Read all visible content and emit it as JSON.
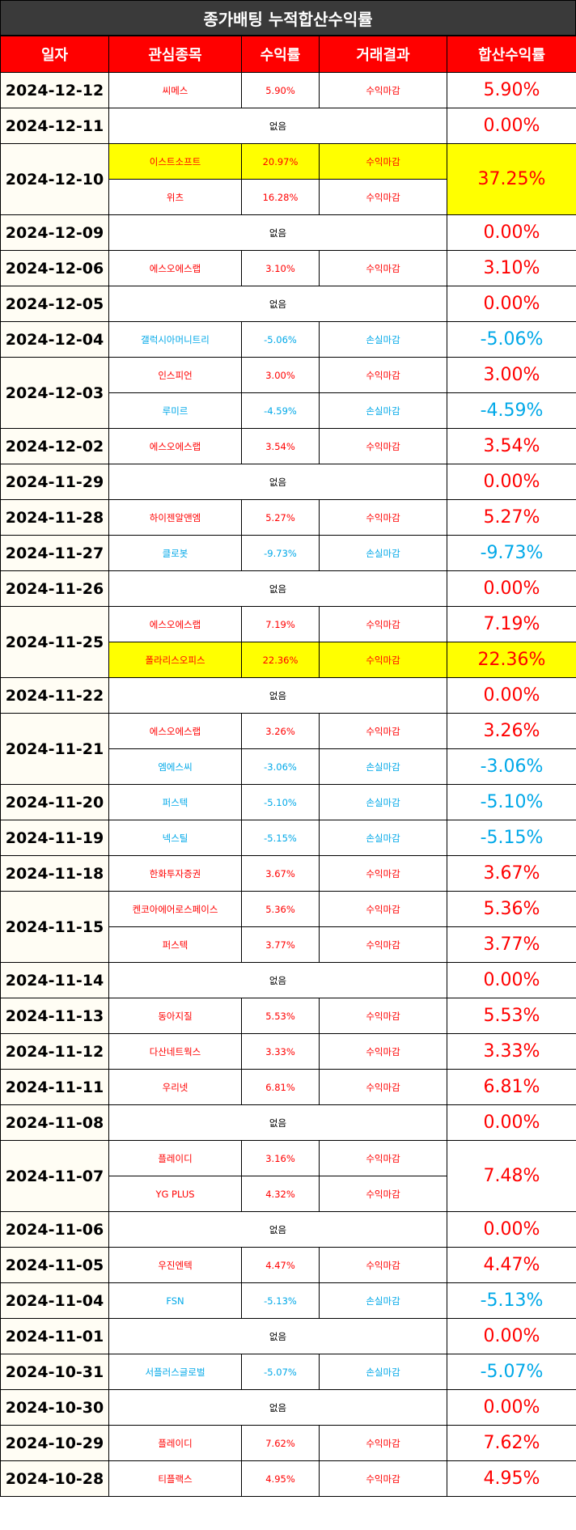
{
  "title": "종가배팅 누적합산수익률",
  "headers": [
    "일자",
    "관심종목",
    "수익률",
    "거래결과",
    "합산수익률"
  ],
  "none_label": "없음",
  "colors": {
    "positive": "#ff0000",
    "negative": "#00a8e8",
    "highlight": "#ffff00",
    "header": "#ff0000",
    "title_bg": "#3a3a3a"
  },
  "days": [
    {
      "date": "2024-12-12",
      "total": "5.90%",
      "total_sign": "pos",
      "trades": [
        {
          "stock": "씨메스",
          "rate": "5.90%",
          "result": "수익마감",
          "sign": "pos"
        }
      ]
    },
    {
      "date": "2024-12-11",
      "total": "0.00%",
      "total_sign": "pos",
      "trades": []
    },
    {
      "date": "2024-12-10",
      "total": "37.25%",
      "total_sign": "pos",
      "trades": [
        {
          "stock": "이스트소프트",
          "rate": "20.97%",
          "result": "수익마감",
          "sign": "pos",
          "highlight": true
        },
        {
          "stock": "위츠",
          "rate": "16.28%",
          "result": "수익마감",
          "sign": "pos"
        }
      ]
    },
    {
      "date": "2024-12-09",
      "total": "0.00%",
      "total_sign": "pos",
      "trades": []
    },
    {
      "date": "2024-12-06",
      "total": "3.10%",
      "total_sign": "pos",
      "trades": [
        {
          "stock": "에스오에스랩",
          "rate": "3.10%",
          "result": "수익마감",
          "sign": "pos"
        }
      ]
    },
    {
      "date": "2024-12-05",
      "total": "0.00%",
      "total_sign": "pos",
      "trades": []
    },
    {
      "date": "2024-12-04",
      "total": "-5.06%",
      "total_sign": "neg",
      "trades": [
        {
          "stock": "갤럭시아머니트리",
          "rate": "-5.06%",
          "result": "손실마감",
          "sign": "neg"
        }
      ]
    },
    {
      "date": "2024-12-03",
      "trades": [
        {
          "stock": "인스피언",
          "rate": "3.00%",
          "result": "수익마감",
          "sign": "pos",
          "total": "3.00%"
        },
        {
          "stock": "루미르",
          "rate": "-4.59%",
          "result": "손실마감",
          "sign": "neg",
          "total": "-4.59%"
        }
      ]
    },
    {
      "date": "2024-12-02",
      "total": "3.54%",
      "total_sign": "pos",
      "trades": [
        {
          "stock": "에스오에스랩",
          "rate": "3.54%",
          "result": "수익마감",
          "sign": "pos"
        }
      ]
    },
    {
      "date": "2024-11-29",
      "total": "0.00%",
      "total_sign": "pos",
      "trades": []
    },
    {
      "date": "2024-11-28",
      "total": "5.27%",
      "total_sign": "pos",
      "trades": [
        {
          "stock": "하이젠알앤엠",
          "rate": "5.27%",
          "result": "수익마감",
          "sign": "pos"
        }
      ]
    },
    {
      "date": "2024-11-27",
      "total": "-9.73%",
      "total_sign": "neg",
      "trades": [
        {
          "stock": "클로봇",
          "rate": "-9.73%",
          "result": "손실마감",
          "sign": "neg"
        }
      ]
    },
    {
      "date": "2024-11-26",
      "total": "0.00%",
      "total_sign": "pos",
      "trades": []
    },
    {
      "date": "2024-11-25",
      "trades": [
        {
          "stock": "에스오에스랩",
          "rate": "7.19%",
          "result": "수익마감",
          "sign": "pos",
          "total": "7.19%"
        },
        {
          "stock": "폴라리스오피스",
          "rate": "22.36%",
          "result": "수익마감",
          "sign": "pos",
          "total": "22.36%",
          "highlight": true
        }
      ]
    },
    {
      "date": "2024-11-22",
      "total": "0.00%",
      "total_sign": "pos",
      "trades": []
    },
    {
      "date": "2024-11-21",
      "trades": [
        {
          "stock": "에스오에스랩",
          "rate": "3.26%",
          "result": "수익마감",
          "sign": "pos",
          "total": "3.26%"
        },
        {
          "stock": "엠에스씨",
          "rate": "-3.06%",
          "result": "손실마감",
          "sign": "neg",
          "total": "-3.06%"
        }
      ]
    },
    {
      "date": "2024-11-20",
      "total": "-5.10%",
      "total_sign": "neg",
      "trades": [
        {
          "stock": "퍼스텍",
          "rate": "-5.10%",
          "result": "손실마감",
          "sign": "neg"
        }
      ]
    },
    {
      "date": "2024-11-19",
      "total": "-5.15%",
      "total_sign": "neg",
      "trades": [
        {
          "stock": "넥스틸",
          "rate": "-5.15%",
          "result": "손실마감",
          "sign": "neg"
        }
      ]
    },
    {
      "date": "2024-11-18",
      "total": "3.67%",
      "total_sign": "pos",
      "trades": [
        {
          "stock": "한화투자증권",
          "rate": "3.67%",
          "result": "수익마감",
          "sign": "pos"
        }
      ]
    },
    {
      "date": "2024-11-15",
      "trades": [
        {
          "stock": "켄코아에어로스페이스",
          "rate": "5.36%",
          "result": "수익마감",
          "sign": "pos",
          "total": "5.36%"
        },
        {
          "stock": "퍼스텍",
          "rate": "3.77%",
          "result": "수익마감",
          "sign": "pos",
          "total": "3.77%"
        }
      ]
    },
    {
      "date": "2024-11-14",
      "total": "0.00%",
      "total_sign": "pos",
      "trades": []
    },
    {
      "date": "2024-11-13",
      "total": "5.53%",
      "total_sign": "pos",
      "trades": [
        {
          "stock": "동아지질",
          "rate": "5.53%",
          "result": "수익마감",
          "sign": "pos"
        }
      ]
    },
    {
      "date": "2024-11-12",
      "total": "3.33%",
      "total_sign": "pos",
      "trades": [
        {
          "stock": "다산네트웍스",
          "rate": "3.33%",
          "result": "수익마감",
          "sign": "pos"
        }
      ]
    },
    {
      "date": "2024-11-11",
      "total": "6.81%",
      "total_sign": "pos",
      "trades": [
        {
          "stock": "우리넷",
          "rate": "6.81%",
          "result": "수익마감",
          "sign": "pos"
        }
      ]
    },
    {
      "date": "2024-11-08",
      "total": "0.00%",
      "total_sign": "pos",
      "trades": []
    },
    {
      "date": "2024-11-07",
      "total": "7.48%",
      "total_sign": "pos",
      "trades": [
        {
          "stock": "플레이디",
          "rate": "3.16%",
          "result": "수익마감",
          "sign": "pos"
        },
        {
          "stock": "YG PLUS",
          "rate": "4.32%",
          "result": "수익마감",
          "sign": "pos"
        }
      ]
    },
    {
      "date": "2024-11-06",
      "total": "0.00%",
      "total_sign": "pos",
      "trades": []
    },
    {
      "date": "2024-11-05",
      "total": "4.47%",
      "total_sign": "pos",
      "trades": [
        {
          "stock": "우진엔텍",
          "rate": "4.47%",
          "result": "수익마감",
          "sign": "pos"
        }
      ]
    },
    {
      "date": "2024-11-04",
      "total": "-5.13%",
      "total_sign": "neg",
      "trades": [
        {
          "stock": "FSN",
          "rate": "-5.13%",
          "result": "손실마감",
          "sign": "neg"
        }
      ]
    },
    {
      "date": "2024-11-01",
      "total": "0.00%",
      "total_sign": "pos",
      "trades": []
    },
    {
      "date": "2024-10-31",
      "total": "-5.07%",
      "total_sign": "neg",
      "trades": [
        {
          "stock": "서플러스글로벌",
          "rate": "-5.07%",
          "result": "손실마감",
          "sign": "neg"
        }
      ]
    },
    {
      "date": "2024-10-30",
      "total": "0.00%",
      "total_sign": "pos",
      "trades": []
    },
    {
      "date": "2024-10-29",
      "total": "7.62%",
      "total_sign": "pos",
      "trades": [
        {
          "stock": "플레이디",
          "rate": "7.62%",
          "result": "수익마감",
          "sign": "pos"
        }
      ]
    },
    {
      "date": "2024-10-28",
      "total": "4.95%",
      "total_sign": "pos",
      "trades": [
        {
          "stock": "티플랙스",
          "rate": "4.95%",
          "result": "수익마감",
          "sign": "pos"
        }
      ]
    }
  ]
}
